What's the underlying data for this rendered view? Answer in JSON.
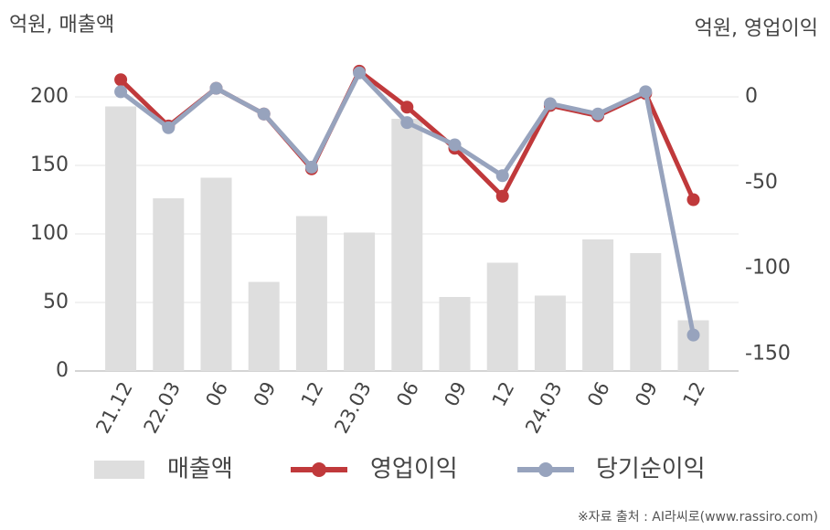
{
  "chart_data": {
    "type": "bar-line",
    "y_unit": "억원, 매출액",
    "y2_unit": "억원, 영업이익",
    "source": "※자료 출처 : AI라씨로(www.rassiro.com)",
    "categories": [
      "21.12",
      "22.03",
      "06",
      "09",
      "12",
      "23.03",
      "06",
      "09",
      "12",
      "24.03",
      "06",
      "09",
      "12"
    ],
    "series": [
      {
        "name": "매출액",
        "type": "bar",
        "color": "#dedede",
        "values": [
          193,
          126,
          141,
          65,
          113,
          101,
          184,
          54,
          79,
          55,
          96,
          86,
          37
        ]
      },
      {
        "name": "영업이익",
        "type": "line",
        "axis": "y2",
        "color": "#c0393b",
        "values": [
          10,
          -17,
          5,
          -10,
          -42,
          15,
          -6,
          -30,
          -58,
          -5,
          -11,
          2,
          -60
        ]
      },
      {
        "name": "당기순이익",
        "type": "line",
        "axis": "y2",
        "color": "#97a3bd",
        "values": [
          3,
          -18,
          5,
          -10,
          -41,
          14,
          -15,
          -28,
          -46,
          -4,
          -10,
          3,
          -139
        ]
      }
    ],
    "ylim": [
      0,
      220
    ],
    "yticks": [
      0,
      50,
      100,
      150,
      200
    ],
    "y2lim": [
      -160,
      16
    ],
    "y2ticks": [
      0,
      -50,
      -100,
      -150
    ],
    "grid": true
  }
}
